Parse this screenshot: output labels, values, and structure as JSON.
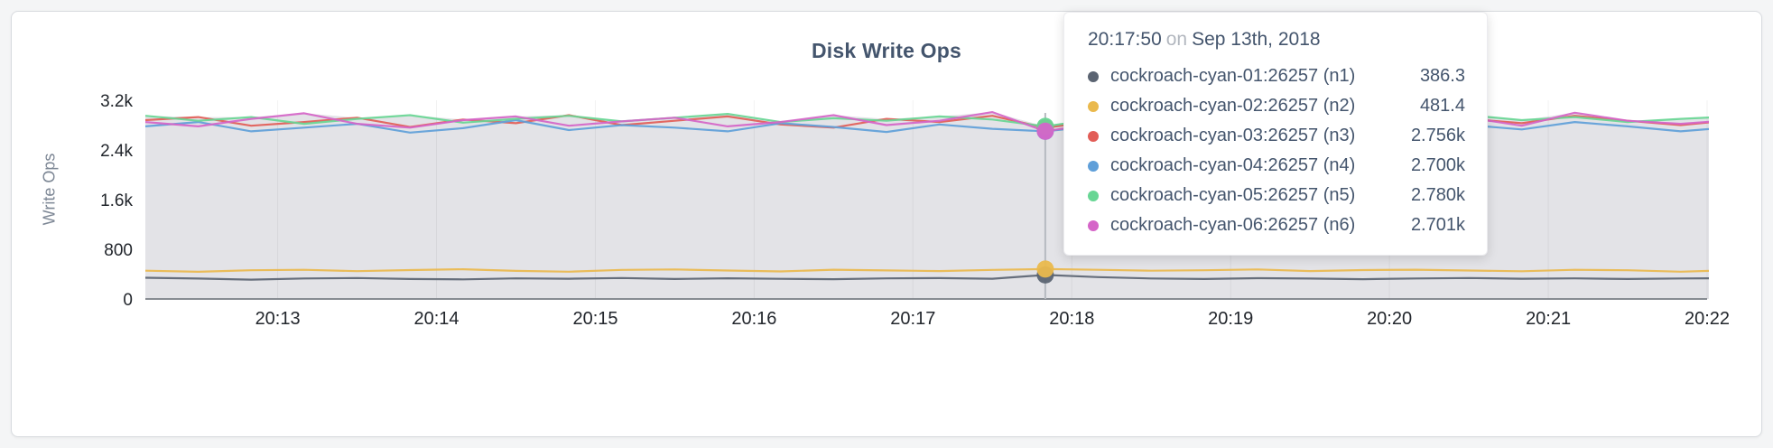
{
  "chart_data": {
    "type": "line",
    "title": "Disk Write Ops",
    "ylabel": "Write Ops",
    "legend_position": "tooltip-top-right",
    "grid": "vertical",
    "area_fill": "#e3e3e7",
    "x_domain": [
      12.166667,
      22.0
    ],
    "x_start": 12.166667,
    "x_step": 0.333333,
    "x_unit": "minutes after 20:00",
    "ylim": [
      0,
      3200
    ],
    "x_ticks": [
      {
        "value": 13,
        "label": "20:13"
      },
      {
        "value": 14,
        "label": "20:14"
      },
      {
        "value": 15,
        "label": "20:15"
      },
      {
        "value": 16,
        "label": "20:16"
      },
      {
        "value": 17,
        "label": "20:17"
      },
      {
        "value": 18,
        "label": "20:18"
      },
      {
        "value": 19,
        "label": "20:19"
      },
      {
        "value": 20,
        "label": "20:20"
      },
      {
        "value": 21,
        "label": "20:21"
      },
      {
        "value": 22,
        "label": "20:22"
      }
    ],
    "y_ticks": [
      {
        "value": 0,
        "label": "0"
      },
      {
        "value": 800,
        "label": "800"
      },
      {
        "value": 1600,
        "label": "1.6k"
      },
      {
        "value": 2400,
        "label": "2.4k"
      },
      {
        "value": 3200,
        "label": "3.2k"
      }
    ],
    "hover": {
      "index": 17,
      "time": "20:17:50",
      "connector": "on",
      "date": "Sep 13th, 2018"
    },
    "series": [
      {
        "name": "cockroach-cyan-01:26257 (n1)",
        "short": "n1",
        "color": "#5b6472",
        "hover_label": "386.3",
        "values": [
          342,
          328,
          312,
          330,
          338,
          322,
          316,
          331,
          326,
          337,
          321,
          333,
          324,
          318,
          332,
          336,
          326,
          386.3,
          352,
          330,
          322,
          335,
          328,
          318,
          330,
          338,
          326,
          332,
          322,
          330,
          335
        ]
      },
      {
        "name": "cockroach-cyan-02:26257 (n2)",
        "short": "n2",
        "color": "#eab94d",
        "hover_label": "481.4",
        "values": [
          455,
          438,
          462,
          470,
          448,
          466,
          478,
          452,
          440,
          468,
          475,
          458,
          444,
          472,
          460,
          450,
          468,
          481.4,
          470,
          455,
          462,
          476,
          450,
          466,
          472,
          458,
          446,
          470,
          462,
          440,
          465
        ]
      },
      {
        "name": "cockroach-cyan-03:26257 (n3)",
        "short": "n3",
        "color": "#e25d57",
        "hover_label": "2.756k",
        "values": [
          2880,
          2930,
          2790,
          2850,
          2920,
          2770,
          2890,
          2830,
          2960,
          2800,
          2870,
          2940,
          2810,
          2760,
          2900,
          2850,
          2950,
          2756,
          2870,
          2930,
          2800,
          2860,
          2920,
          2780,
          2850,
          2900,
          2830,
          2950,
          2870,
          2800,
          2880
        ]
      },
      {
        "name": "cockroach-cyan-04:26257 (n4)",
        "short": "n4",
        "color": "#5f9fd9",
        "hover_label": "2.700k",
        "values": [
          2780,
          2850,
          2700,
          2760,
          2820,
          2680,
          2750,
          2880,
          2720,
          2800,
          2760,
          2700,
          2830,
          2770,
          2690,
          2810,
          2740,
          2700,
          2790,
          2850,
          2710,
          2770,
          2820,
          2690,
          2760,
          2800,
          2730,
          2850,
          2780,
          2700,
          2770
        ]
      },
      {
        "name": "cockroach-cyan-05:26257 (n5)",
        "short": "n5",
        "color": "#68d694",
        "hover_label": "2.780k",
        "values": [
          2950,
          2870,
          2930,
          2820,
          2900,
          2960,
          2840,
          2900,
          2950,
          2860,
          2920,
          2980,
          2850,
          2910,
          2870,
          2940,
          2890,
          2780,
          2900,
          2950,
          2830,
          2890,
          2940,
          2860,
          2910,
          2960,
          2880,
          2930,
          2850,
          2900,
          2940
        ]
      },
      {
        "name": "cockroach-cyan-06:26257 (n6)",
        "short": "n6",
        "color": "#d565c8",
        "hover_label": "2.701k",
        "values": [
          2850,
          2780,
          2900,
          2990,
          2820,
          2760,
          2880,
          2940,
          2790,
          2860,
          2920,
          2780,
          2850,
          2960,
          2800,
          2870,
          3010,
          2701,
          2830,
          2890,
          2760,
          2900,
          2950,
          2810,
          2860,
          2920,
          2790,
          3000,
          2870,
          2820,
          2880
        ]
      }
    ]
  }
}
